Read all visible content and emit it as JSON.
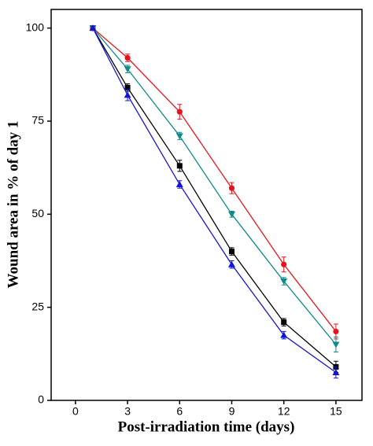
{
  "chart_data": {
    "type": "line",
    "x_label": "Post-irradiation time (days)",
    "y_label": "Wound area in % of day 1",
    "x": [
      1,
      3,
      6,
      9,
      12,
      15
    ],
    "series": [
      {
        "color": "#000000",
        "marker": "square",
        "values": [
          100,
          84,
          63,
          40,
          21,
          9
        ],
        "errors": [
          0.5,
          1,
          1.5,
          1,
          1,
          1.5
        ]
      },
      {
        "color": "#e8141b",
        "marker": "circle",
        "values": [
          100,
          92,
          77.5,
          57,
          36.5,
          18.5
        ],
        "errors": [
          0.5,
          1,
          2,
          1.5,
          2,
          2
        ]
      },
      {
        "color": "#108a8a",
        "marker": "triangle-down",
        "values": [
          100,
          89,
          71,
          50,
          32,
          15
        ],
        "errors": [
          0.5,
          1,
          1,
          0.8,
          1,
          2
        ]
      },
      {
        "color": "#1515d0",
        "marker": "triangle-up",
        "values": [
          100,
          82,
          58,
          36.5,
          17.5,
          7.5
        ],
        "errors": [
          0.5,
          1.5,
          1,
          1,
          1,
          1.5
        ]
      }
    ],
    "xlim": [
      -1.4,
      16.5
    ],
    "xticks": [
      0,
      3,
      6,
      9,
      12,
      15
    ],
    "ylim": [
      0,
      105
    ],
    "yticks": [
      0,
      25,
      50,
      75,
      100
    ]
  }
}
